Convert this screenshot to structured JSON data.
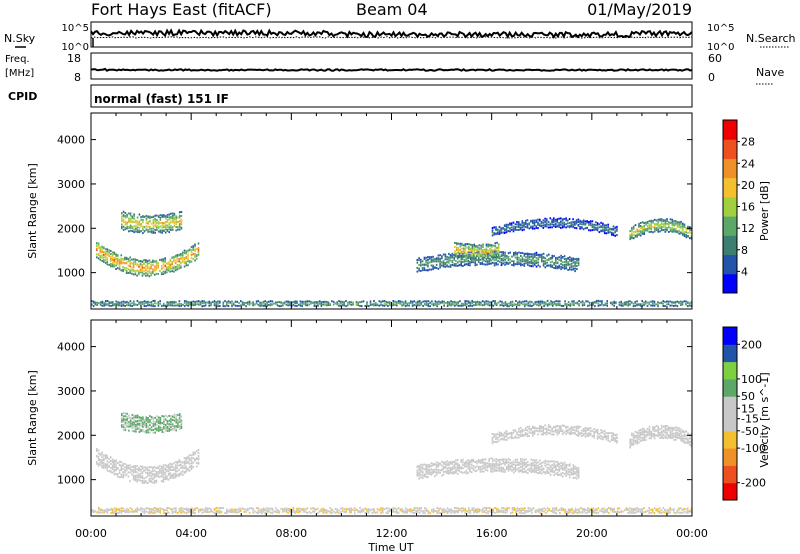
{
  "header": {
    "site": "Fort Hays East (fitACF)",
    "beam": "Beam 04",
    "date": "01/May/2019"
  },
  "status_panels": {
    "nsky_label": "N.Sky",
    "nsearch_label": "N.Search",
    "noise_ticks": [
      "10^5",
      "10^0"
    ],
    "freq_label": "Freq.",
    "freq_unit": "[MHz]",
    "freq_ticks": [
      "18",
      "8"
    ],
    "nave_label": "Nave",
    "nave_ticks": [
      "60",
      "0"
    ],
    "cpid_label": "CPID",
    "cpid_value": "normal (fast) 151 IF"
  },
  "colors": {
    "power_scale": [
      "#0000ff",
      "#2255aa",
      "#3d7d72",
      "#5ca868",
      "#a0d040",
      "#f5c030",
      "#f09028",
      "#ef5020",
      "#ef0000"
    ],
    "velocity_scale": [
      "#ef0000",
      "#ef5020",
      "#f09028",
      "#f5c030",
      "#c8c8c8",
      "#c8c8c8",
      "#5ca868",
      "#7fd040",
      "#2255aa",
      "#0000ff"
    ]
  },
  "chart_data": [
    {
      "type": "heatmap",
      "title": "Power",
      "xlabel": "Time UT",
      "ylabel": "Slant Range [km]",
      "x_ticks": [
        "00:00",
        "04:00",
        "08:00",
        "12:00",
        "16:00",
        "20:00",
        "00:00"
      ],
      "xlim_hours": [
        0,
        24
      ],
      "y_ticks": [
        1000,
        2000,
        3000,
        4000
      ],
      "ylim": [
        180,
        4600
      ],
      "colorbar": {
        "label": "Power [dB]",
        "ticks": [
          4,
          8,
          12,
          16,
          20,
          24,
          28
        ],
        "range": [
          0,
          32
        ]
      },
      "echo_regions": [
        {
          "name": "morning-arc",
          "t_start": 0.2,
          "t_end": 4.3,
          "range_center": 1500,
          "curve_depth": 420,
          "thickness": 380,
          "peak_value": 28
        },
        {
          "name": "morning-upper-patch",
          "t_start": 1.2,
          "t_end": 3.6,
          "range_center": 2150,
          "curve_depth": 80,
          "thickness": 420,
          "peak_value": 24
        },
        {
          "name": "afternoon-band",
          "t_start": 13.0,
          "t_end": 19.5,
          "range_center": 1150,
          "curve_depth": -150,
          "thickness": 320,
          "peak_value": 14
        },
        {
          "name": "afternoon-patch",
          "t_start": 14.5,
          "t_end": 16.3,
          "range_center": 1500,
          "curve_depth": 60,
          "thickness": 350,
          "peak_value": 24
        },
        {
          "name": "evening-band",
          "t_start": 16.0,
          "t_end": 21.0,
          "range_center": 1900,
          "curve_depth": -200,
          "thickness": 220,
          "peak_value": 10
        },
        {
          "name": "late-arc",
          "t_start": 21.5,
          "t_end": 24.0,
          "range_center": 1850,
          "curve_depth": -200,
          "thickness": 300,
          "peak_value": 22
        },
        {
          "name": "ground-scatter-floor",
          "t_start": 0.0,
          "t_end": 24.0,
          "range_center": 280,
          "curve_depth": 0,
          "thickness": 120,
          "peak_value": 16
        }
      ]
    },
    {
      "type": "heatmap",
      "title": "Velocity",
      "xlabel": "Time UT",
      "ylabel": "Slant Range [km]",
      "x_ticks": [
        "00:00",
        "04:00",
        "08:00",
        "12:00",
        "16:00",
        "20:00",
        "00:00"
      ],
      "xlim_hours": [
        0,
        24
      ],
      "y_ticks": [
        1000,
        2000,
        3000,
        4000
      ],
      "ylim": [
        180,
        4600
      ],
      "colorbar": {
        "label": "Velocity [m s^-1]",
        "ticks": [
          200,
          100,
          50,
          15,
          -15,
          -50,
          -100,
          -200
        ],
        "range": [
          -250,
          250
        ]
      },
      "echo_regions": [
        {
          "name": "morning-arc",
          "t_start": 0.2,
          "t_end": 4.3,
          "range_center": 1500,
          "curve_depth": 420,
          "thickness": 380,
          "peak_value": 0
        },
        {
          "name": "morning-upper-patch",
          "t_start": 1.2,
          "t_end": 3.6,
          "range_center": 2300,
          "curve_depth": 80,
          "thickness": 380,
          "peak_value": 60
        },
        {
          "name": "afternoon-band",
          "t_start": 13.0,
          "t_end": 19.5,
          "range_center": 1150,
          "curve_depth": -150,
          "thickness": 320,
          "peak_value": 0
        },
        {
          "name": "evening-band",
          "t_start": 16.0,
          "t_end": 21.0,
          "range_center": 1900,
          "curve_depth": -200,
          "thickness": 220,
          "peak_value": 0
        },
        {
          "name": "late-arc",
          "t_start": 21.5,
          "t_end": 24.0,
          "range_center": 1850,
          "curve_depth": -200,
          "thickness": 300,
          "peak_value": 0
        },
        {
          "name": "ground-scatter-floor",
          "t_start": 0.0,
          "t_end": 24.0,
          "range_center": 280,
          "curve_depth": 0,
          "thickness": 120,
          "peak_value": -40
        }
      ]
    }
  ]
}
